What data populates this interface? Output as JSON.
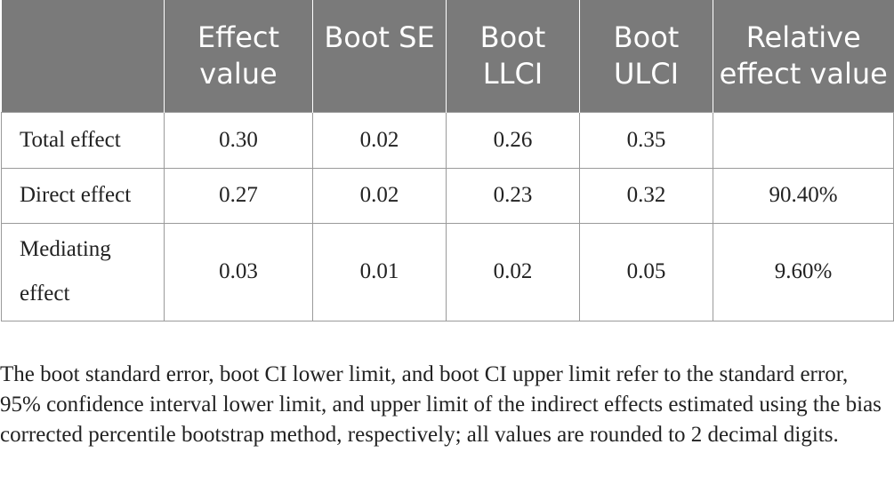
{
  "table": {
    "headers": [
      "",
      "Effect value",
      "Boot SE",
      "Boot LLCI",
      "Boot ULCI",
      "Relative effect value"
    ],
    "rows": [
      [
        "Total effect",
        "0.30",
        "0.02",
        "0.26",
        "0.35",
        ""
      ],
      [
        "Direct effect",
        "0.27",
        "0.02",
        "0.23",
        "0.32",
        "90.40%"
      ],
      [
        "Mediating effect",
        "0.03",
        "0.01",
        "0.02",
        "0.05",
        "9.60%"
      ]
    ]
  },
  "footnote": "The boot standard error, boot CI lower limit, and boot CI upper limit refer to the standard error, 95% confidence interval lower limit, and upper limit of the indirect effects estimated using the bias corrected percentile bootstrap method, respectively; all values are rounded to 2 decimal digits."
}
